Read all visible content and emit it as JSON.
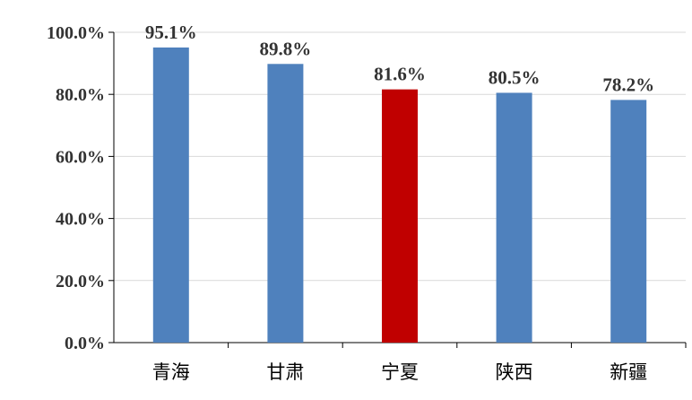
{
  "chart_data": {
    "type": "bar",
    "categories": [
      "青海",
      "甘肃",
      "宁夏",
      "陕西",
      "新疆"
    ],
    "values": [
      95.1,
      89.8,
      81.6,
      80.5,
      78.2
    ],
    "data_labels": [
      "95.1%",
      "89.8%",
      "81.6%",
      "80.5%",
      "78.2%"
    ],
    "colors": [
      "#4F81BD",
      "#4F81BD",
      "#C00000",
      "#4F81BD",
      "#4F81BD"
    ],
    "ylim": [
      0,
      100
    ],
    "yticks": [
      "0.0%",
      "20.0%",
      "40.0%",
      "60.0%",
      "80.0%",
      "100.0%"
    ],
    "grid": true
  }
}
